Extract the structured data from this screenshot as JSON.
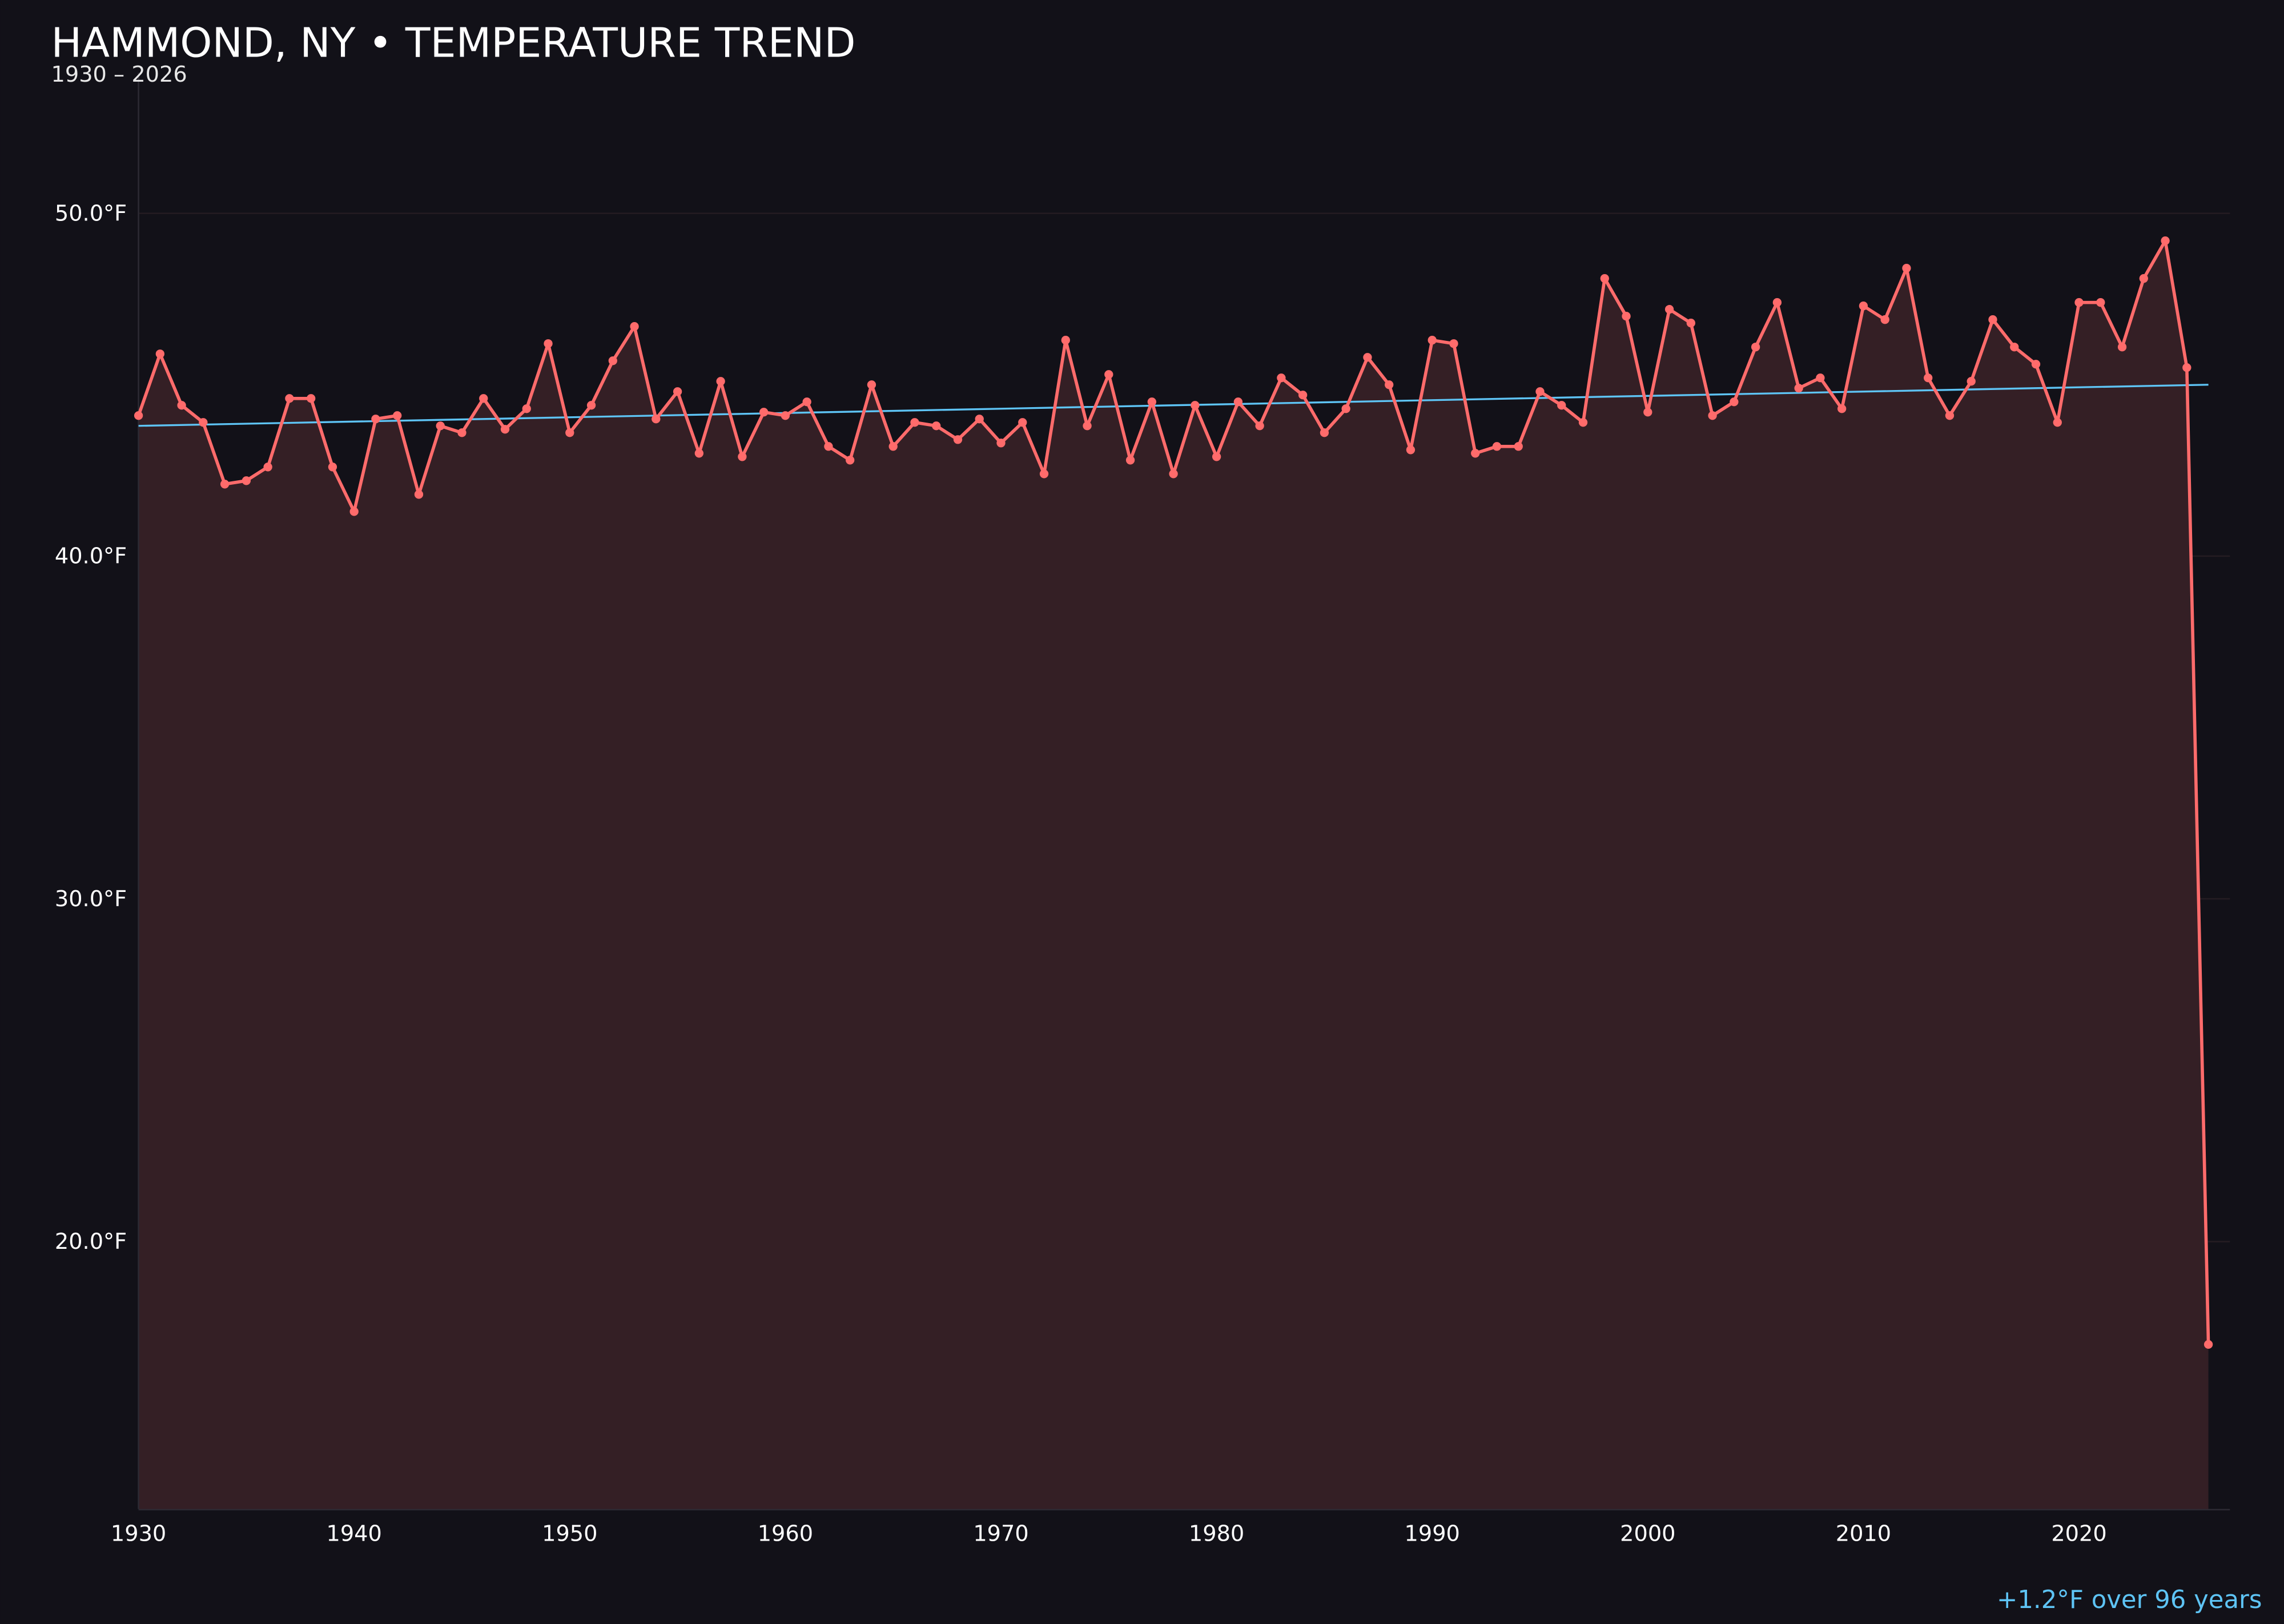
{
  "colors": {
    "background": "#121118",
    "line": "#ff6b6b",
    "fill": "#341f25",
    "trend": "#5ec4f5",
    "grid": "#241c22"
  },
  "chart_data": {
    "type": "area",
    "title": "HAMMOND, NY • TEMPERATURE TREND",
    "subtitle": "1930 – 2026",
    "xlabel": "",
    "ylabel": "",
    "xlim": [
      1930,
      2027
    ],
    "ylim": [
      12.2,
      54.1
    ],
    "grid": true,
    "x_ticks": [
      1930,
      1940,
      1950,
      1960,
      1970,
      1980,
      1990,
      2000,
      2010,
      2020
    ],
    "x_tick_labels": [
      "1930",
      "1940",
      "1950",
      "1960",
      "1970",
      "1980",
      "1990",
      "2000",
      "2010",
      "2020"
    ],
    "y_ticks": [
      20,
      30,
      40,
      50
    ],
    "y_tick_labels": [
      "20.0°F",
      "30.0°F",
      "40.0°F",
      "50.0°F"
    ],
    "x": [
      1930,
      1931,
      1932,
      1933,
      1934,
      1935,
      1936,
      1937,
      1938,
      1939,
      1940,
      1941,
      1942,
      1943,
      1944,
      1945,
      1946,
      1947,
      1948,
      1949,
      1950,
      1951,
      1952,
      1953,
      1954,
      1955,
      1956,
      1957,
      1958,
      1959,
      1960,
      1961,
      1962,
      1963,
      1964,
      1965,
      1966,
      1967,
      1968,
      1969,
      1970,
      1971,
      1972,
      1973,
      1974,
      1975,
      1976,
      1977,
      1978,
      1979,
      1980,
      1981,
      1982,
      1983,
      1984,
      1985,
      1986,
      1987,
      1988,
      1989,
      1990,
      1991,
      1992,
      1993,
      1994,
      1995,
      1996,
      1997,
      1998,
      1999,
      2000,
      2001,
      2002,
      2003,
      2004,
      2005,
      2006,
      2007,
      2008,
      2009,
      2010,
      2011,
      2012,
      2013,
      2014,
      2015,
      2016,
      2017,
      2018,
      2019,
      2020,
      2021,
      2022,
      2023,
      2024,
      2025,
      2026
    ],
    "series": [
      {
        "values": [
          44.1,
          45.9,
          44.4,
          43.9,
          42.1,
          42.2,
          42.6,
          44.6,
          44.6,
          42.6,
          41.3,
          44.0,
          44.1,
          41.8,
          43.8,
          43.6,
          44.6,
          43.7,
          44.3,
          46.2,
          43.6,
          44.4,
          45.7,
          46.7,
          44.0,
          44.8,
          43.0,
          45.1,
          42.9,
          44.2,
          44.1,
          44.5,
          43.2,
          42.8,
          45.0,
          43.2,
          43.9,
          43.8,
          43.4,
          44.0,
          43.3,
          43.9,
          42.4,
          46.3,
          43.8,
          45.3,
          42.8,
          44.5,
          42.4,
          44.4,
          42.9,
          44.5,
          43.8,
          45.2,
          44.7,
          43.6,
          44.3,
          45.8,
          45.0,
          43.1,
          46.3,
          46.2,
          43.0,
          43.2,
          43.2,
          44.8,
          44.4,
          43.9,
          48.1,
          47.0,
          44.2,
          47.2,
          46.8,
          44.1,
          44.5,
          46.1,
          47.4,
          44.9,
          45.2,
          44.3,
          47.3,
          46.9,
          48.4,
          45.2,
          44.1,
          45.1,
          46.9,
          46.1,
          45.6,
          43.9,
          47.4,
          47.4,
          46.1,
          48.1,
          49.2,
          45.5,
          17.0
        ]
      }
    ],
    "trend": {
      "x": [
        1930,
        2026
      ],
      "y": [
        43.8,
        45.0
      ]
    },
    "annotation": "+1.2°F over 96 years"
  }
}
